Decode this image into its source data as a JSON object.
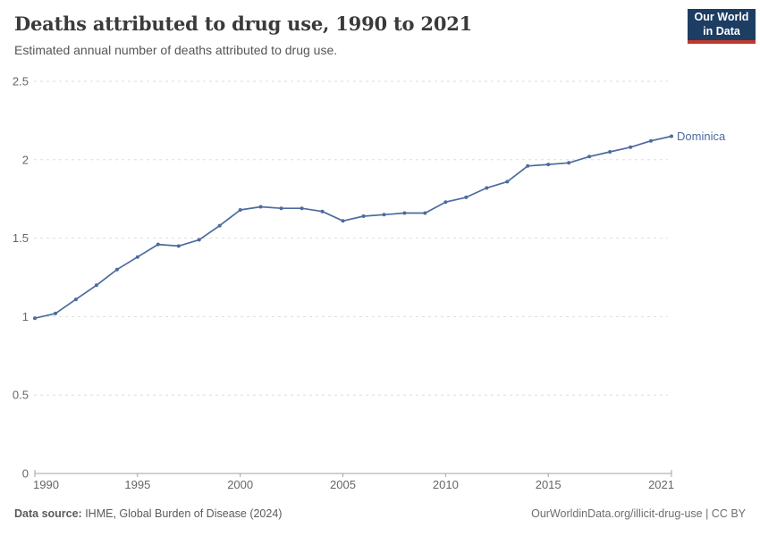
{
  "header": {
    "title": "Deaths attributed to drug use, 1990 to 2021",
    "subtitle": "Estimated annual number of deaths attributed to drug use.",
    "logo": {
      "line1": "Our World",
      "line2": "in Data",
      "bg_color": "#1d3d63",
      "accent_color": "#c0392b"
    }
  },
  "chart_data": {
    "type": "line",
    "title": "Deaths attributed to drug use, 1990 to 2021",
    "subtitle": "Estimated annual number of deaths attributed to drug use.",
    "xlabel": "",
    "ylabel": "",
    "x": [
      1990,
      1991,
      1992,
      1993,
      1994,
      1995,
      1996,
      1997,
      1998,
      1999,
      2000,
      2001,
      2002,
      2003,
      2004,
      2005,
      2006,
      2007,
      2008,
      2009,
      2010,
      2011,
      2012,
      2013,
      2014,
      2015,
      2016,
      2017,
      2018,
      2019,
      2020,
      2021
    ],
    "series": [
      {
        "name": "Dominica",
        "color": "#4c6b9e",
        "values": [
          0.99,
          1.02,
          1.11,
          1.2,
          1.3,
          1.38,
          1.46,
          1.45,
          1.49,
          1.58,
          1.68,
          1.7,
          1.69,
          1.69,
          1.67,
          1.61,
          1.64,
          1.65,
          1.66,
          1.66,
          1.73,
          1.76,
          1.82,
          1.86,
          1.96,
          1.97,
          1.98,
          2.02,
          2.05,
          2.08,
          2.12,
          2.15
        ]
      }
    ],
    "xticks": [
      1990,
      1995,
      2000,
      2005,
      2010,
      2015,
      2021
    ],
    "yticks": [
      0,
      0.5,
      1,
      1.5,
      2,
      2.5
    ],
    "xlim": [
      1990,
      2021
    ],
    "ylim": [
      0,
      2.5
    ],
    "grid": "horizontal-dashed",
    "legend_position": "line-end-label",
    "grid_color": "#dddddd",
    "axis_color": "#a3a3a3",
    "tick_label_color": "#666666"
  },
  "footer": {
    "source_label": "Data source:",
    "source_text": " IHME, Global Burden of Disease (2024)",
    "credit": "OurWorldinData.org/illicit-drug-use | CC BY"
  }
}
